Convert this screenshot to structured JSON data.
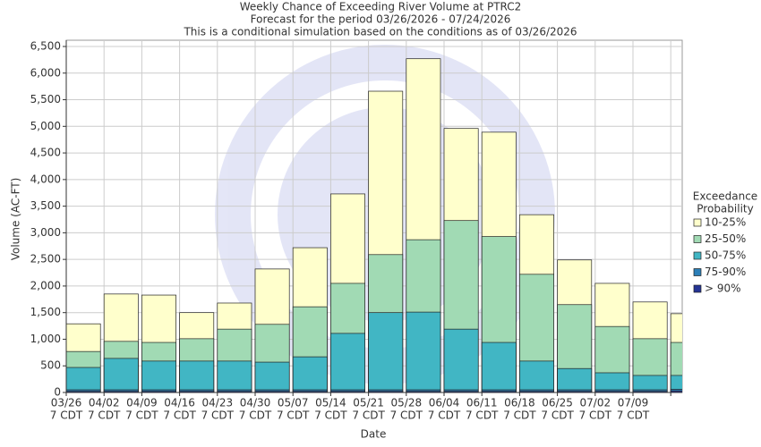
{
  "chart_data": {
    "type": "bar",
    "title": "Weekly Chance of Exceeding River Volume at PTRC2",
    "subtitle": "Forecast for the period 03/26/2026 - 07/24/2026",
    "subtitle2": "This is a conditional simulation based on the conditions as of 03/26/2026",
    "x_label": "Date",
    "y_label": "Volume (AC-FT)",
    "x_tick_sublabel": "7 CDT",
    "categories": [
      "03/26",
      "04/02",
      "04/09",
      "04/16",
      "04/23",
      "04/30",
      "05/07",
      "05/14",
      "05/21",
      "05/28",
      "06/04",
      "06/11",
      "06/18",
      "06/25",
      "07/02",
      "07/09",
      null
    ],
    "series": [
      {
        "name": "10-25%",
        "color": "#ffffcc",
        "values": [
          1290,
          1850,
          1830,
          1500,
          1680,
          2320,
          2720,
          3730,
          5660,
          6270,
          4960,
          4890,
          3340,
          2490,
          2050,
          1700,
          1480
        ]
      },
      {
        "name": "25-50%",
        "color": "#a1dab4",
        "values": [
          770,
          960,
          940,
          1010,
          1190,
          1280,
          1610,
          2050,
          2590,
          2870,
          3230,
          2930,
          2220,
          1650,
          1240,
          1010,
          940
        ]
      },
      {
        "name": "50-75%",
        "color": "#41b6c4",
        "values": [
          470,
          640,
          590,
          590,
          590,
          570,
          670,
          1110,
          1500,
          1510,
          1190,
          940,
          590,
          450,
          370,
          320,
          320
        ]
      },
      {
        "name": "75-90%",
        "color": "#2c7fb8",
        "values": [
          50,
          50,
          50,
          50,
          50,
          50,
          50,
          50,
          50,
          50,
          50,
          50,
          50,
          50,
          50,
          50,
          60
        ]
      },
      {
        "name": "> 90%",
        "color": "#253494",
        "values": [
          20,
          20,
          20,
          20,
          20,
          20,
          20,
          20,
          20,
          20,
          20,
          20,
          20,
          20,
          20,
          20,
          30
        ]
      }
    ],
    "legend_title": [
      "Exceedance",
      "Probability"
    ],
    "legend": "right",
    "grid": true,
    "ylim": [
      0,
      6500
    ],
    "yticks": [
      0,
      500,
      {
        "value": 1000,
        "label": "1,000"
      },
      {
        "value": 1500,
        "label": "1,500"
      },
      {
        "value": 2000,
        "label": "2,000"
      },
      {
        "value": 2500,
        "label": "2,500"
      },
      {
        "value": 3000,
        "label": "3,000"
      },
      {
        "value": 3500,
        "label": "3,500"
      },
      {
        "value": 4000,
        "label": "4,000"
      },
      {
        "value": 4500,
        "label": "4,500"
      },
      {
        "value": 5000,
        "label": "5,000"
      },
      {
        "value": 5500,
        "label": "5,500"
      },
      {
        "value": 6000,
        "label": "6,000"
      },
      {
        "value": 6500,
        "label": "6,500"
      }
    ]
  }
}
